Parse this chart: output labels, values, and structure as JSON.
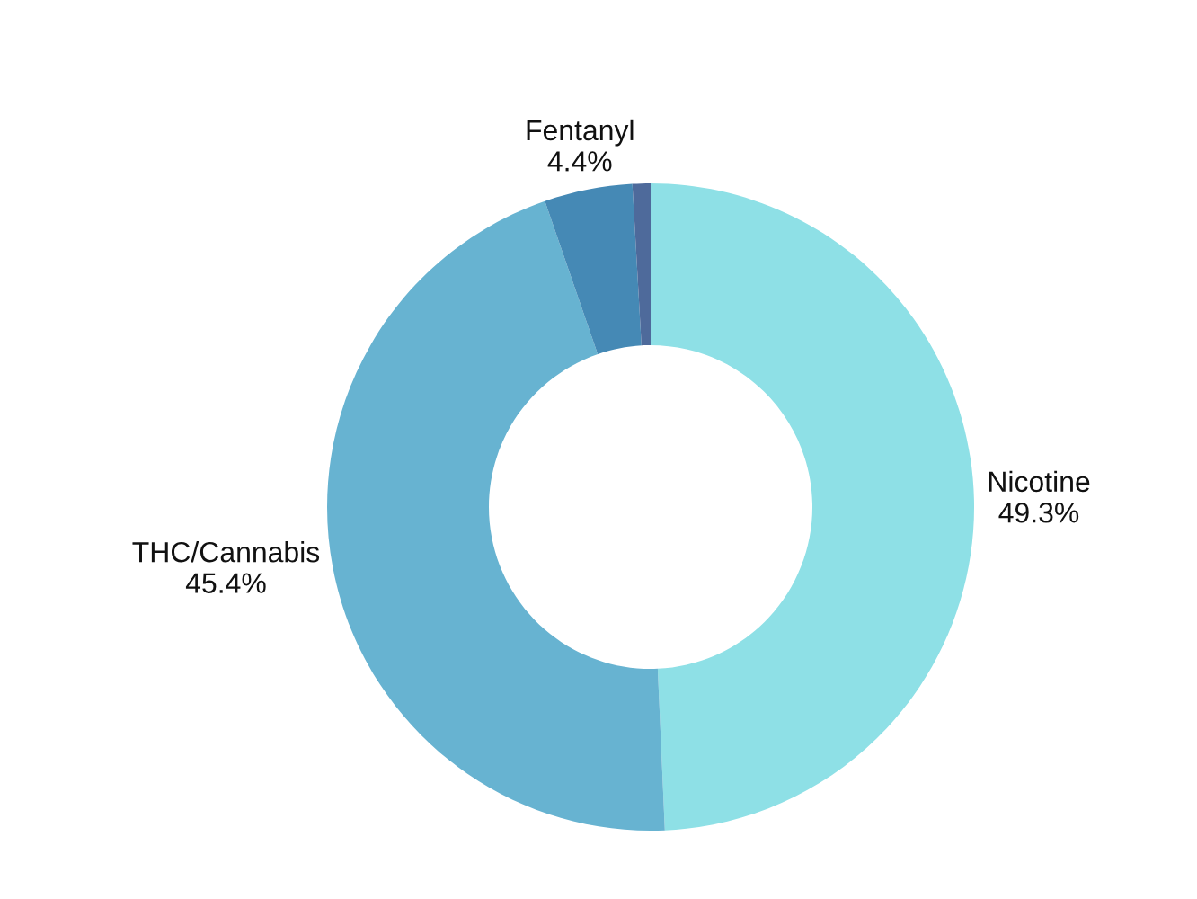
{
  "chart_data": {
    "type": "donut",
    "categories": [
      "Nicotine",
      "THC/Cannabis",
      "Fentanyl",
      null
    ],
    "values": [
      49.3,
      45.4,
      4.4,
      0.9
    ],
    "colors": [
      "#8ee0e6",
      "#67b3d1",
      "#4589b5",
      "#4e6a9b"
    ],
    "value_labels": [
      "49.3%",
      "45.4%",
      "4.4%",
      null
    ]
  }
}
